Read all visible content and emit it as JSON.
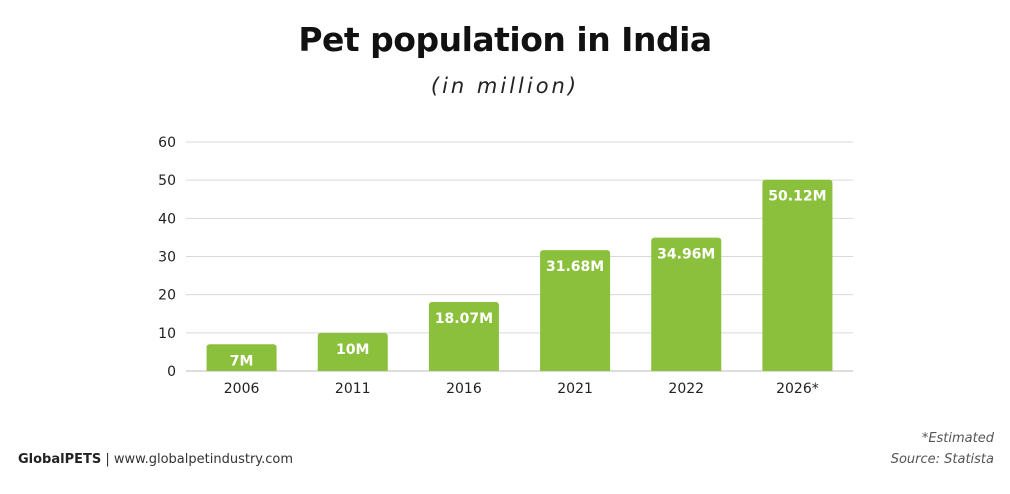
{
  "chart_data": {
    "type": "bar",
    "title": "Pet population in India",
    "subtitle": "(in million)",
    "categories": [
      "2006",
      "2011",
      "2016",
      "2021",
      "2022",
      "2026*"
    ],
    "values": [
      7,
      10,
      18.07,
      31.68,
      34.96,
      50.12
    ],
    "data_labels": [
      "7M",
      "10M",
      "18.07M",
      "31.68M",
      "34.96M",
      "50.12M"
    ],
    "ylim": [
      0,
      60
    ],
    "yticks": [
      0,
      10,
      20,
      30,
      40,
      50,
      60
    ],
    "xlabel": "",
    "ylabel": "",
    "grid": true,
    "bar_color": "#8bc03d",
    "grid_color": "#d9d9d9"
  },
  "footer": {
    "brand": "GlobalPETS",
    "separator": "|",
    "website": "www.globalpetindustry.com",
    "note": "*Estimated",
    "source": "Source: Statista"
  }
}
